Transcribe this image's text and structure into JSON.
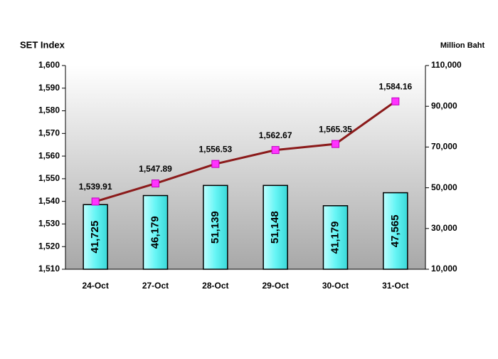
{
  "chart_data": {
    "type": "combo",
    "ylabel": "SET Index",
    "y2label": "Million Baht",
    "categories": [
      "24-Oct",
      "27-Oct",
      "28-Oct",
      "29-Oct",
      "30-Oct",
      "31-Oct"
    ],
    "series": [
      {
        "type": "bar",
        "axis": "y2",
        "color": "#66f5f5",
        "values": [
          41725,
          46179,
          51139,
          51148,
          41179,
          47565
        ],
        "value_labels": [
          "41,725",
          "46,179",
          "51,139",
          "51,148",
          "41,179",
          "47,565"
        ]
      },
      {
        "type": "line",
        "axis": "y",
        "color": "#8b1a1a",
        "marker_color": "#ff33ff",
        "values": [
          1539.91,
          1547.89,
          1556.53,
          1562.67,
          1565.35,
          1584.16
        ],
        "value_labels": [
          "1,539.91",
          "1,547.89",
          "1,556.53",
          "1,562.67",
          "1,565.35",
          "1,584.16"
        ]
      }
    ],
    "ylim": [
      1510,
      1600
    ],
    "yticks": [
      {
        "value": 1510,
        "label": "1,510"
      },
      {
        "value": 1520,
        "label": "1,520"
      },
      {
        "value": 1530,
        "label": "1,530"
      },
      {
        "value": 1540,
        "label": "1,540"
      },
      {
        "value": 1550,
        "label": "1,550"
      },
      {
        "value": 1560,
        "label": "1,560"
      },
      {
        "value": 1570,
        "label": "1,570"
      },
      {
        "value": 1580,
        "label": "1,580"
      },
      {
        "value": 1590,
        "label": "1,590"
      },
      {
        "value": 1600,
        "label": "1,600"
      }
    ],
    "y2lim": [
      10000,
      110000
    ],
    "y2ticks": [
      {
        "value": 10000,
        "label": "10,000"
      },
      {
        "value": 30000,
        "label": "30,000"
      },
      {
        "value": 50000,
        "label": "50,000"
      },
      {
        "value": 70000,
        "label": "70,000"
      },
      {
        "value": 90000,
        "label": "90,000"
      },
      {
        "value": 110000,
        "label": "110,000"
      }
    ],
    "grid": false
  }
}
